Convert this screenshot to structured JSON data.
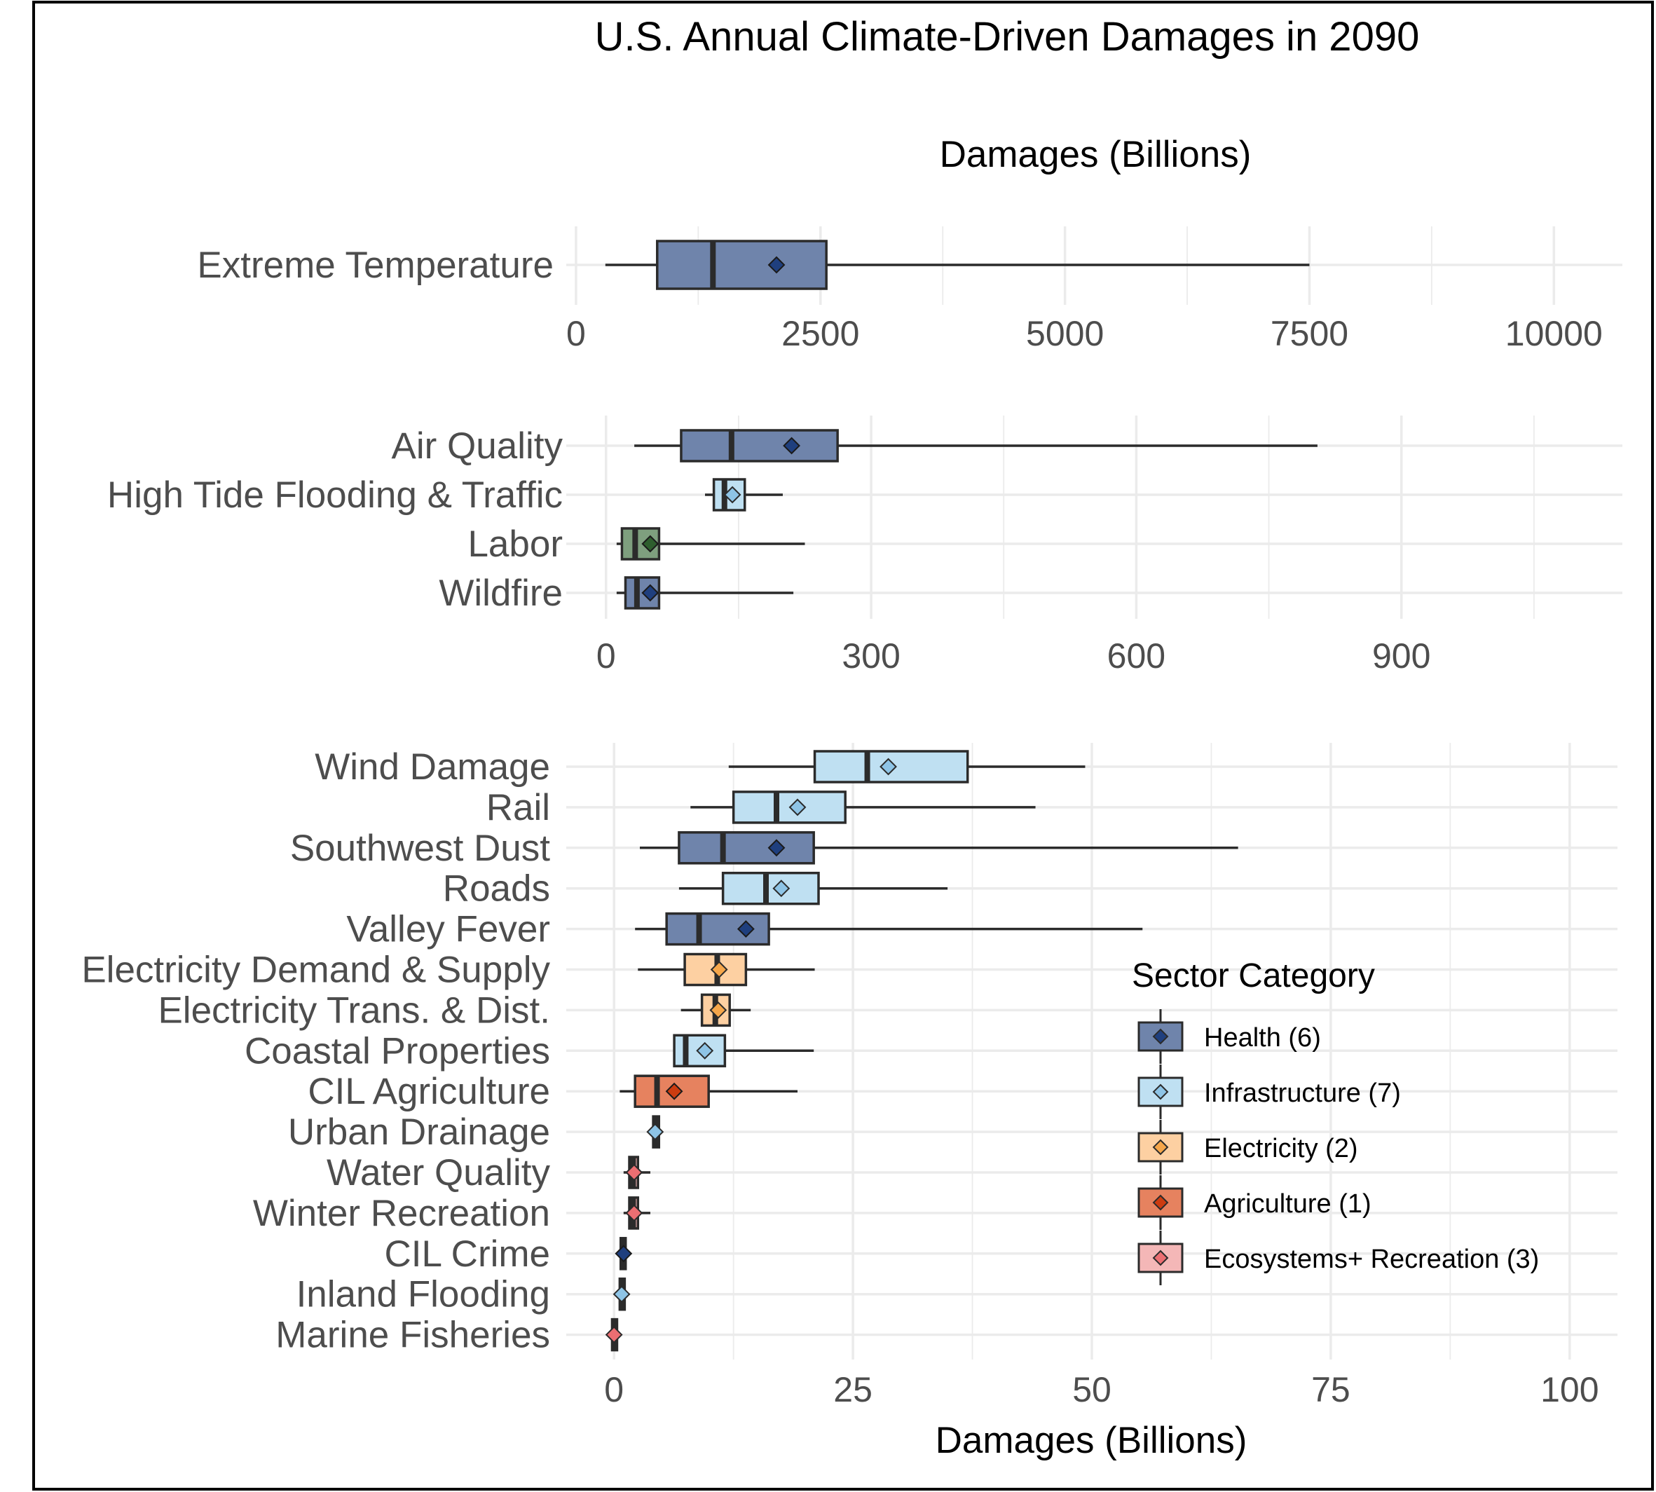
{
  "chart_data": [
    {
      "type": "boxplot",
      "title": "U.S. Annual Climate-Driven Damages in 2090",
      "xlabel": "Damages (Billions)",
      "orientation": "horizontal",
      "xlim": [
        -100,
        10700
      ],
      "x_ticks": [
        0,
        2500,
        5000,
        7500,
        10000
      ],
      "categories": [
        "Extreme Temperature"
      ],
      "series": [
        {
          "label": "Extreme Temperature",
          "category": "Health (6)",
          "min": 300,
          "q1": 830,
          "median": 1400,
          "q3": 2560,
          "max": 7500,
          "mean": 2050
        }
      ]
    },
    {
      "type": "boxplot",
      "xlabel": "Damages (Billions)",
      "orientation": "horizontal",
      "xlim": [
        -45,
        1150
      ],
      "x_ticks": [
        0,
        300,
        600,
        900
      ],
      "categories": [
        "Air Quality",
        "High Tide Flooding & Traffic",
        "Labor",
        "Wildfire"
      ],
      "series": [
        {
          "label": "Air Quality",
          "category": "Health (6)",
          "min": 32,
          "q1": 85,
          "median": 142,
          "q3": 262,
          "max": 805,
          "mean": 210
        },
        {
          "label": "High Tide Flooding & Traffic",
          "category": "Infrastructure (7)",
          "min": 112,
          "q1": 122,
          "median": 134,
          "q3": 157,
          "max": 200,
          "mean": 143
        },
        {
          "label": "Labor",
          "category": "Labor",
          "min": 12,
          "q1": 18,
          "median": 33,
          "q3": 60,
          "max": 225,
          "mean": 50
        },
        {
          "label": "Wildfire",
          "category": "Health (6)",
          "min": 12,
          "q1": 22,
          "median": 35,
          "q3": 60,
          "max": 212,
          "mean": 50
        }
      ]
    },
    {
      "type": "boxplot",
      "xlabel": "Damages (Billions)",
      "orientation": "horizontal",
      "xlim": [
        -5,
        105
      ],
      "x_ticks": [
        0,
        25,
        50,
        75,
        100
      ],
      "categories": [
        "Wind Damage",
        "Rail",
        "Southwest Dust",
        "Roads",
        "Valley Fever",
        "Electricity Demand & Supply",
        "Electricity Trans. & Dist.",
        "Coastal Properties",
        "CIL Agriculture",
        "Urban Drainage",
        "Water Quality",
        "Winter Recreation",
        "CIL Crime",
        "Inland Flooding",
        "Marine Fisheries"
      ],
      "series": [
        {
          "label": "Wind Damage",
          "category": "Infrastructure (7)",
          "min": 12,
          "q1": 21,
          "median": 26.5,
          "q3": 37,
          "max": 49.3,
          "mean": 28.7
        },
        {
          "label": "Rail",
          "category": "Infrastructure (7)",
          "min": 8,
          "q1": 12.5,
          "median": 17,
          "q3": 24.2,
          "max": 44.1,
          "mean": 19.2
        },
        {
          "label": "Southwest Dust",
          "category": "Health (6)",
          "min": 2.7,
          "q1": 6.8,
          "median": 11.4,
          "q3": 20.9,
          "max": 65.3,
          "mean": 17
        },
        {
          "label": "Roads",
          "category": "Infrastructure (7)",
          "min": 6.8,
          "q1": 11.4,
          "median": 15.9,
          "q3": 21.4,
          "max": 34.9,
          "mean": 17.5
        },
        {
          "label": "Valley Fever",
          "category": "Health (6)",
          "min": 2.2,
          "q1": 5.5,
          "median": 8.9,
          "q3": 16.2,
          "max": 55.3,
          "mean": 13.8
        },
        {
          "label": "Electricity Demand & Supply",
          "category": "Electricity (2)",
          "min": 2.5,
          "q1": 7.4,
          "median": 10.8,
          "q3": 13.8,
          "max": 21,
          "mean": 11
        },
        {
          "label": "Electricity Trans. & Dist.",
          "category": "Electricity (2)",
          "min": 7,
          "q1": 9.2,
          "median": 10.6,
          "q3": 12.1,
          "max": 14.3,
          "mean": 10.9
        },
        {
          "label": "Coastal Properties",
          "category": "Infrastructure (7)",
          "min": 6.2,
          "q1": 6.3,
          "median": 7.5,
          "q3": 11.6,
          "max": 20.9,
          "mean": 9.5
        },
        {
          "label": "CIL Agriculture",
          "category": "Agriculture (1)",
          "min": 0.6,
          "q1": 2.2,
          "median": 4.5,
          "q3": 9.9,
          "max": 19.2,
          "mean": 6.3
        },
        {
          "label": "Urban Drainage",
          "category": "Infrastructure (7)",
          "min": 4,
          "q1": 4.1,
          "median": 4.3,
          "q3": 4.7,
          "max": 4.8,
          "mean": 4.3
        },
        {
          "label": "Water Quality",
          "category": "Ecosystems+ Recreation (3)",
          "min": 1,
          "q1": 1.6,
          "median": 2,
          "q3": 2.5,
          "max": 3.8,
          "mean": 2.1
        },
        {
          "label": "Winter Recreation",
          "category": "Ecosystems+ Recreation (3)",
          "min": 1,
          "q1": 1.6,
          "median": 2,
          "q3": 2.5,
          "max": 3.8,
          "mean": 2.1
        },
        {
          "label": "CIL Crime",
          "category": "Health (6)",
          "min": 0.6,
          "q1": 0.7,
          "median": 0.9,
          "q3": 1.2,
          "max": 1.4,
          "mean": 1
        },
        {
          "label": "Inland Flooding",
          "category": "Infrastructure (7)",
          "min": 0.5,
          "q1": 0.6,
          "median": 0.8,
          "q3": 1.1,
          "max": 1.2,
          "mean": 0.8
        },
        {
          "label": "Marine Fisheries",
          "category": "Ecosystems+ Recreation (3)",
          "min": -0.3,
          "q1": -0.2,
          "median": 0,
          "q3": 0.1,
          "max": 0.3,
          "mean": 0
        }
      ]
    }
  ],
  "legend": {
    "title": "Sector Category",
    "position": "bottom-right",
    "items": [
      {
        "label": "Health (6)",
        "color": "#6f84ab",
        "marker": "#1f3f7e",
        "hollow": false
      },
      {
        "label": "Infrastructure (7)",
        "color": "#bfe0f2",
        "marker": "#8ec4e6",
        "hollow": true
      },
      {
        "label": "Electricity (2)",
        "color": "#fdd0a2",
        "marker": "#f5a64a",
        "hollow": true
      },
      {
        "label": "Agriculture (1)",
        "color": "#e6825f",
        "marker": "#cc3c10",
        "hollow": false
      },
      {
        "label": "Ecosystems+ Recreation (3)",
        "color": "#f4b7b7",
        "marker": "#ec6e72",
        "hollow": true
      }
    ]
  },
  "unlisted_category_colors": {
    "Labor": {
      "color": "#7e9f7e",
      "marker": "#2e5e2e",
      "hollow": false
    }
  }
}
